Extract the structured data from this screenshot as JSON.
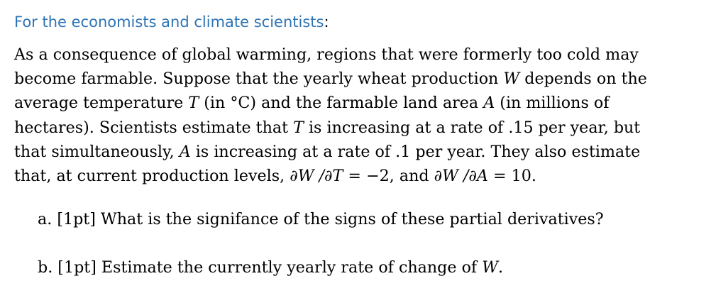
{
  "heading": {
    "text": "For the economists and climate scientists",
    "punct": ":",
    "color": "#2e74b5"
  },
  "paragraph": {
    "l1": "As a consequence of global warming, regions that were formerly too cold may",
    "l2_a": "become farmable.  Suppose that the yearly wheat production ",
    "l2_var": "W",
    "l2_b": " depends on the",
    "l3_a": "average temperature ",
    "l3_var": "T",
    "l3_b": " (in °C) and the farmable land area ",
    "l3_var2": "A",
    "l3_c": " (in millions of",
    "l4_a": "hectares).  Scientists estimate that ",
    "l4_var": "T",
    "l4_b": " is increasing at a rate of .15 per year, but",
    "l5_a": "that simultaneously, ",
    "l5_var": "A",
    "l5_b": " is increasing at a rate of .1 per year.  They also estimate",
    "l6_a": "that, at current production levels, ",
    "l6_expr1": "∂W /∂T",
    "l6_b": " = −2, and ",
    "l6_expr2": "∂W /∂A",
    "l6_c": " = 10."
  },
  "questions": {
    "a_text": "a. [1pt] What is the signifance of the signs of these partial derivatives?",
    "b_text": "b. [1pt] Estimate the currently yearly rate of change of ",
    "b_var": "W",
    "b_end": "."
  }
}
